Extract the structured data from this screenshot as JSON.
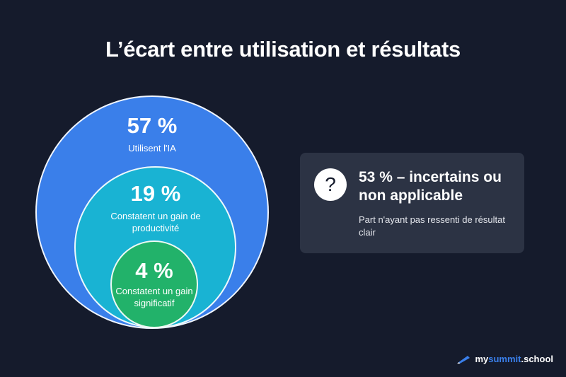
{
  "title": "L’écart entre utilisation et résultats",
  "circles": [
    {
      "value": "57 %",
      "label": "Utilisent l'IA",
      "color": "#3a7fea"
    },
    {
      "value": "19 %",
      "label": "Constatent un gain de productivité",
      "color": "#19b3d3"
    },
    {
      "value": "4 %",
      "label": "Constatent un gain significatif",
      "color": "#22b26a"
    }
  ],
  "card": {
    "icon": "question-icon",
    "title": "53 % – incertains ou non applicable",
    "description": "Part n'ayant pas ressenti de résultat clair"
  },
  "logo": {
    "prefix": "my",
    "highlight": "summit",
    "suffix": ".school",
    "icon": "pen-icon"
  }
}
